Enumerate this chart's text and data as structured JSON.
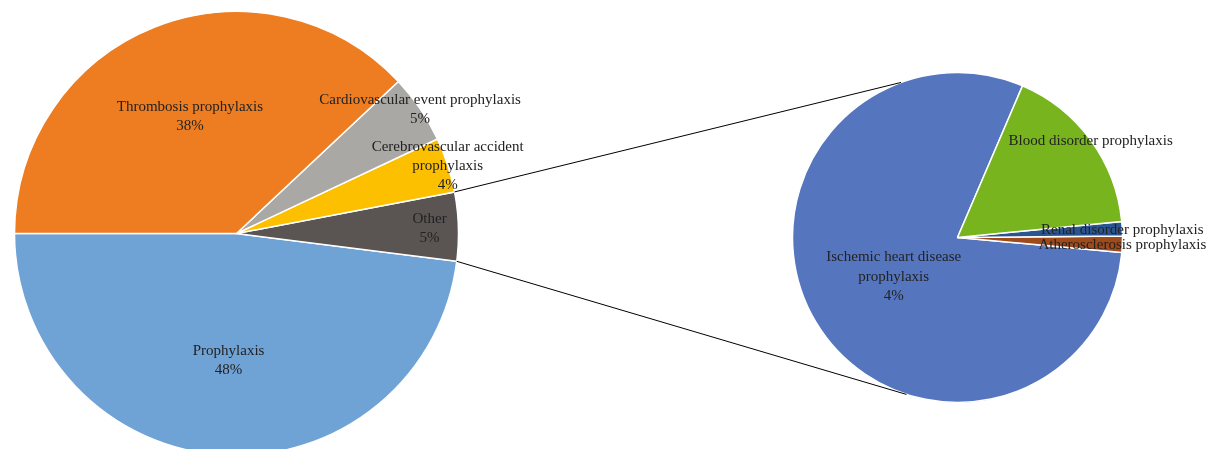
{
  "chart_data": [
    {
      "type": "pie",
      "categories": [
        "Prophylaxis",
        "Other",
        "Cerebrovascular accident prophylaxis",
        "Cardiovascular event prophylaxis",
        "Thrombosis prophylaxis"
      ],
      "values": [
        48,
        5,
        4,
        5,
        38
      ],
      "colors": [
        "#70a3d5",
        "#5a5453",
        "#fcc000",
        "#a9a8a5",
        "#ee7d22"
      ],
      "value_labels": [
        "48%",
        "5%",
        "4%",
        "5%",
        "38%"
      ]
    },
    {
      "type": "pie",
      "categories": [
        "Ischemic heart disease prophylaxis",
        "Atherosclerosis prophylaxis",
        "Renal disorder prophylaxis",
        "Blood disorder prophylaxis"
      ],
      "values": [
        4,
        0.08,
        0.07,
        0.85
      ],
      "colors": [
        "#5576bf",
        "#9e4a1b",
        "#2b5591",
        "#78b41e"
      ],
      "value_labels": [
        "4%",
        null,
        null,
        null
      ]
    }
  ]
}
